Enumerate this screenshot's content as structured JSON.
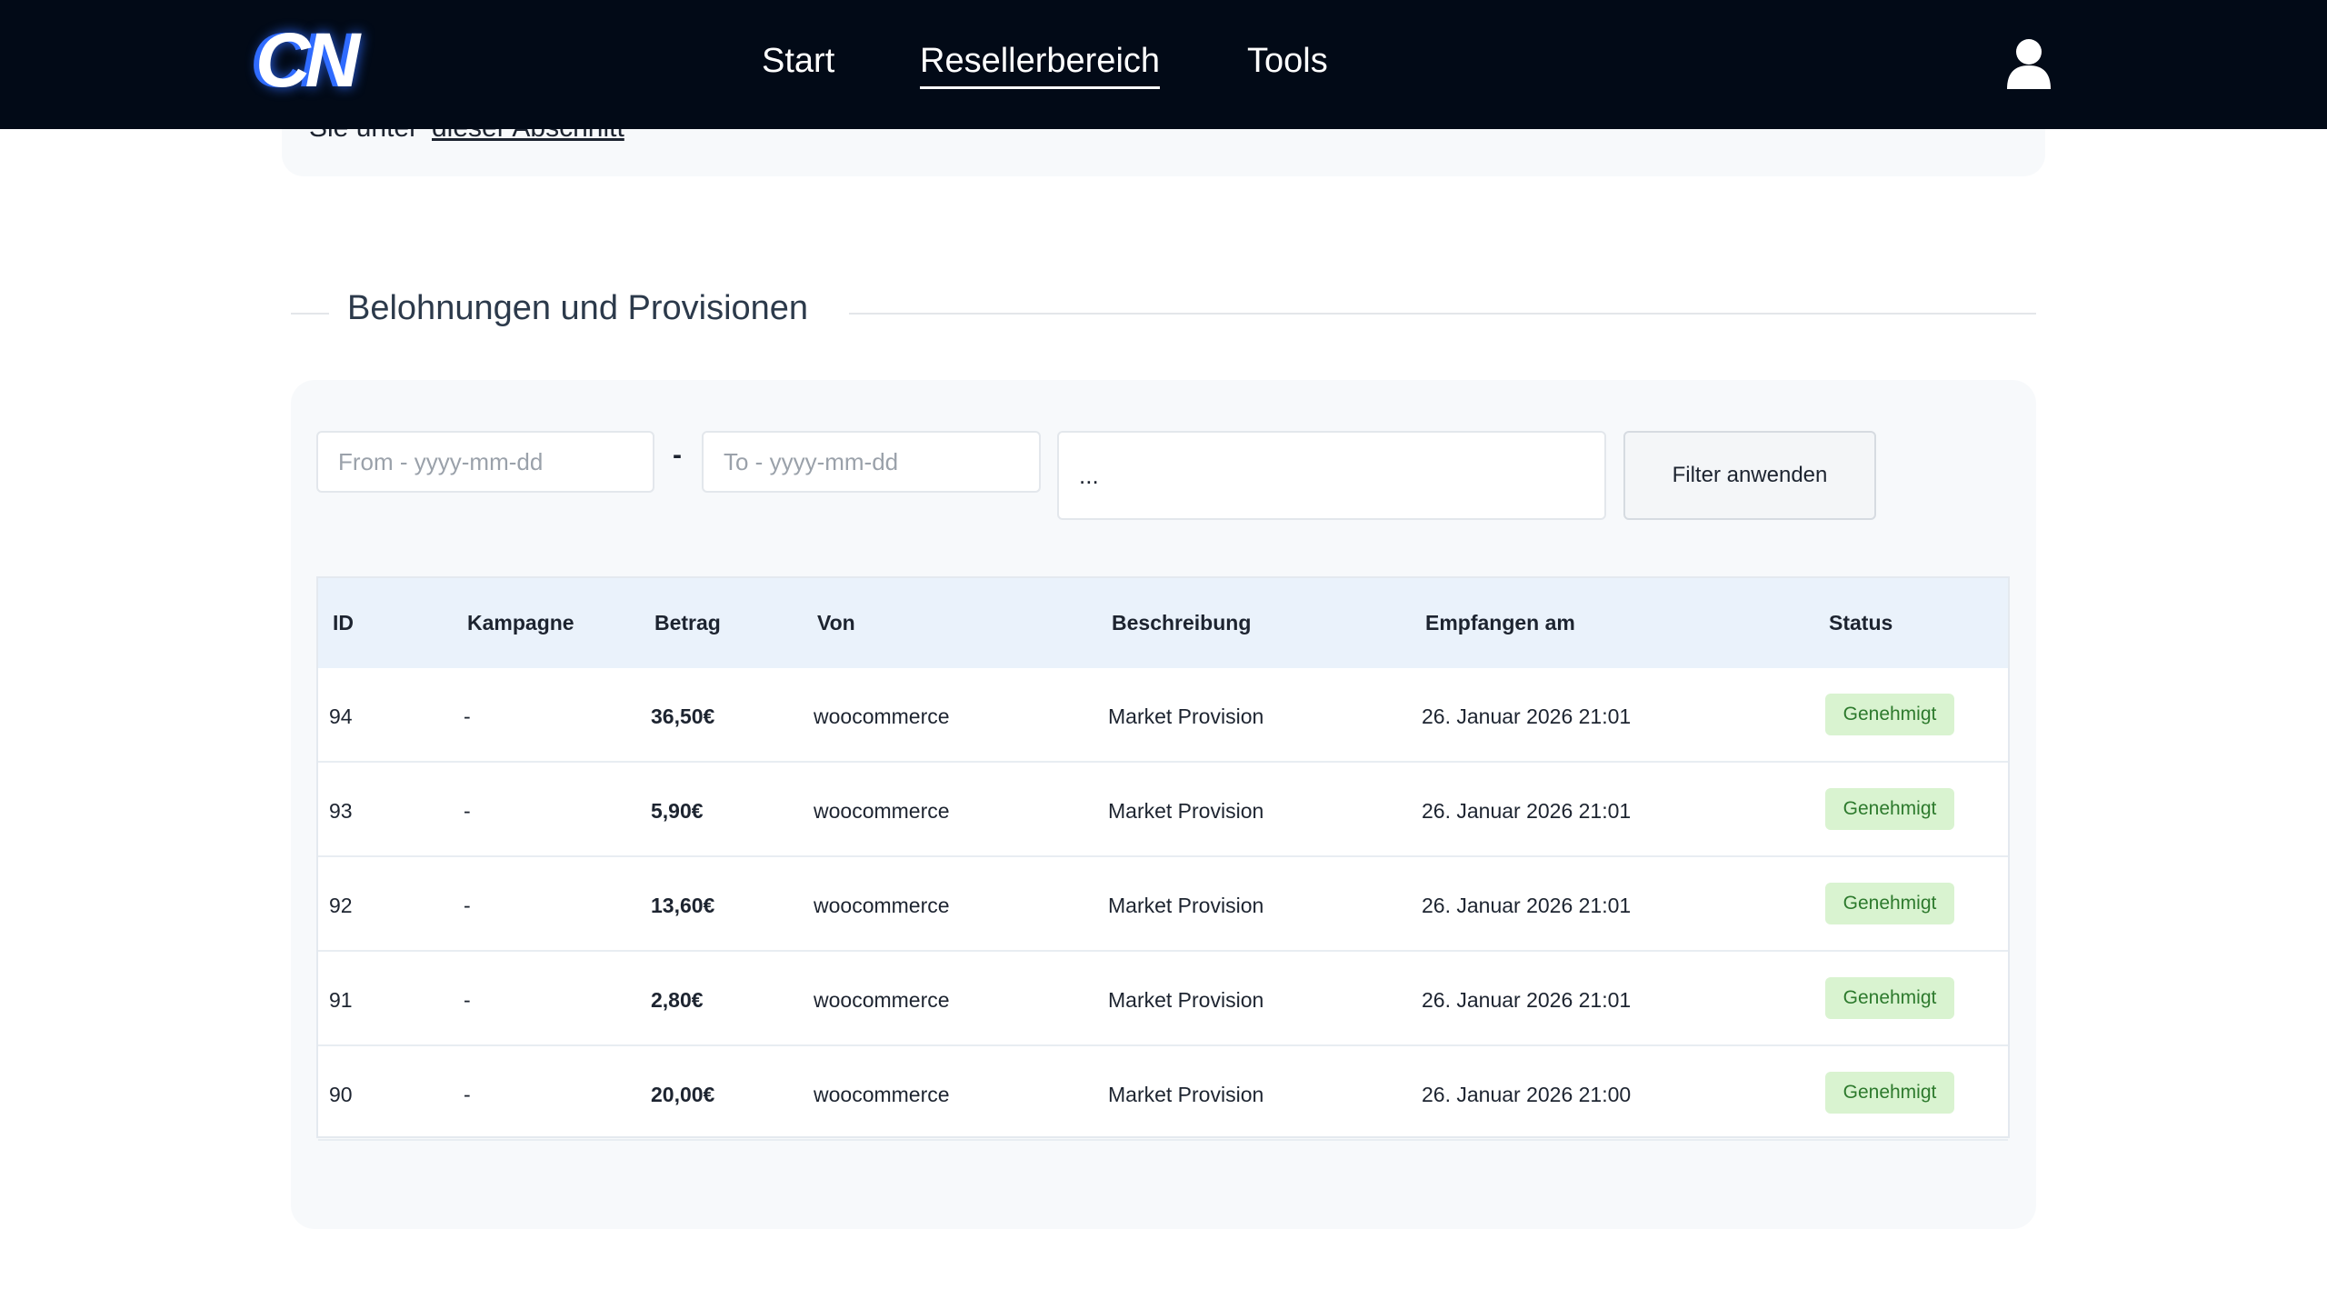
{
  "header": {
    "logo": "CN",
    "nav": [
      "Start",
      "Resellerbereich",
      "Tools"
    ],
    "active": "Resellerbereich"
  },
  "notice": {
    "text": "Sie unter",
    "link": "dieser Abschnitt"
  },
  "section": {
    "title": "Belohnungen und Provisionen"
  },
  "filters": {
    "from_placeholder": "From - yyyy-mm-dd",
    "separator": "-",
    "to_placeholder": "To - yyyy-mm-dd",
    "select": "...",
    "button": "Filter anwenden"
  },
  "table": {
    "headers": [
      "ID",
      "Kampagne",
      "Betrag",
      "Von",
      "Beschreibung",
      "Empfangen am",
      "Status"
    ],
    "rows": [
      [
        "94",
        "-",
        "36,50€",
        "woocommerce",
        "Market Provision",
        "26. Januar 2026 21:01",
        "Genehmigt"
      ],
      [
        "93",
        "-",
        "5,90€",
        "woocommerce",
        "Market Provision",
        "26. Januar 2026 21:01",
        "Genehmigt"
      ],
      [
        "92",
        "-",
        "13,60€",
        "woocommerce",
        "Market Provision",
        "26. Januar 2026 21:01",
        "Genehmigt"
      ],
      [
        "91",
        "-",
        "2,80€",
        "woocommerce",
        "Market Provision",
        "26. Januar 2026 21:01",
        "Genehmigt"
      ],
      [
        "90",
        "-",
        "20,00€",
        "woocommerce",
        "Market Provision",
        "26. Januar 2026 21:00",
        "Genehmigt"
      ]
    ]
  }
}
